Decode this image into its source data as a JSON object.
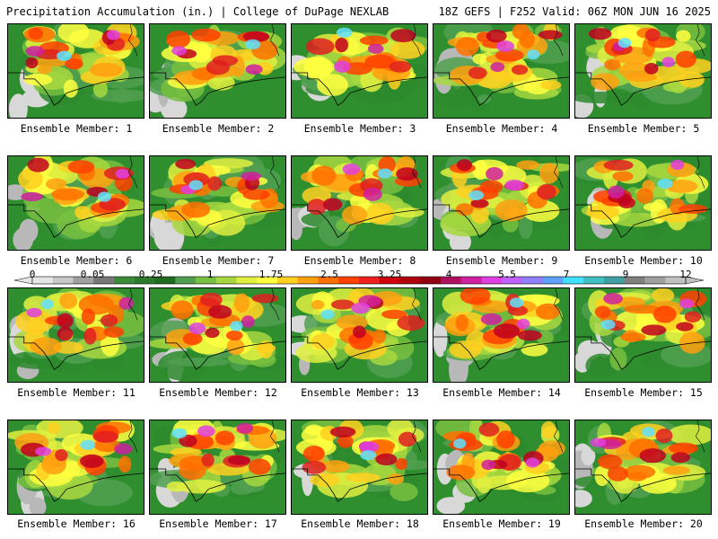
{
  "header": {
    "left": "Precipitation Accumulation (in.) | College of DuPage NEXLAB",
    "right": "18Z GEFS | F252 Valid: 06Z MON JUN 16 2025"
  },
  "panels": [
    {
      "label": "Ensemble Member: 1"
    },
    {
      "label": "Ensemble Member: 2"
    },
    {
      "label": "Ensemble Member: 3"
    },
    {
      "label": "Ensemble Member: 4"
    },
    {
      "label": "Ensemble Member: 5"
    },
    {
      "label": "Ensemble Member: 6"
    },
    {
      "label": "Ensemble Member: 7"
    },
    {
      "label": "Ensemble Member: 8"
    },
    {
      "label": "Ensemble Member: 9"
    },
    {
      "label": "Ensemble Member: 10"
    },
    {
      "label": "Ensemble Member: 11"
    },
    {
      "label": "Ensemble Member: 12"
    },
    {
      "label": "Ensemble Member: 13"
    },
    {
      "label": "Ensemble Member: 14"
    },
    {
      "label": "Ensemble Member: 15"
    },
    {
      "label": "Ensemble Member: 16"
    },
    {
      "label": "Ensemble Member: 17"
    },
    {
      "label": "Ensemble Member: 18"
    },
    {
      "label": "Ensemble Member: 19"
    },
    {
      "label": "Ensemble Member: 20"
    }
  ],
  "colorbar": {
    "ticks": [
      "0",
      "0.05",
      "0.25",
      "1",
      "1.75",
      "2.5",
      "3.25",
      "4",
      "5.5",
      "7",
      "9",
      "12"
    ],
    "colors": [
      "#e6e6e6",
      "#c8c8c8",
      "#a0a0a0",
      "#787878",
      "#3c8c3c",
      "#2d7a2d",
      "#1f6b1f",
      "#50a050",
      "#78c040",
      "#a8d840",
      "#e0f040",
      "#ffff40",
      "#ffd020",
      "#ffa010",
      "#ff7000",
      "#ff4000",
      "#f02020",
      "#d00010",
      "#b00010",
      "#900010",
      "#b01060",
      "#d020a0",
      "#e040e0",
      "#c060ff",
      "#9080ff",
      "#60a0ff",
      "#40e0ff",
      "#40c0c0",
      "#40a0a0",
      "#808080",
      "#a0a0a0",
      "#c0c0c0"
    ]
  }
}
